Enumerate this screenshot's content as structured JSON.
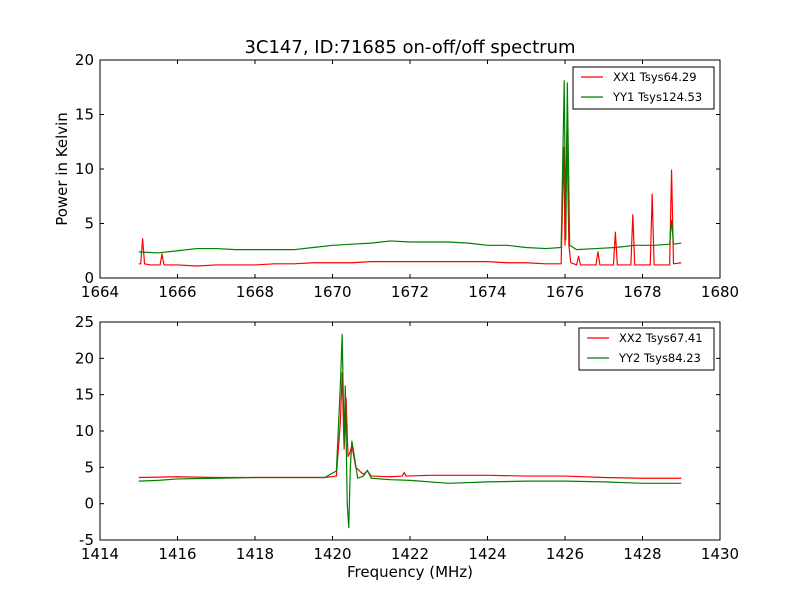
{
  "chart_data": [
    {
      "type": "line",
      "title": "3C147, ID:71685 on-off/off spectrum",
      "xlabel": "",
      "ylabel": "Power in Kelvin",
      "xlim": [
        1664,
        1680
      ],
      "ylim": [
        0,
        20
      ],
      "xticks": [
        1664,
        1666,
        1668,
        1670,
        1672,
        1674,
        1676,
        1678,
        1680
      ],
      "yticks": [
        0,
        5,
        10,
        15,
        20
      ],
      "grid": false,
      "legend": "top-right",
      "series": [
        {
          "name": "XX1 Tsys64.29",
          "color": "#ff0000",
          "points": [
            [
              1665.0,
              1.3
            ],
            [
              1665.05,
              1.3
            ],
            [
              1665.1,
              3.6
            ],
            [
              1665.15,
              1.3
            ],
            [
              1665.3,
              1.2
            ],
            [
              1665.5,
              1.2
            ],
            [
              1665.55,
              1.2
            ],
            [
              1665.6,
              2.2
            ],
            [
              1665.65,
              1.2
            ],
            [
              1666.0,
              1.2
            ],
            [
              1666.5,
              1.1
            ],
            [
              1667.0,
              1.2
            ],
            [
              1667.5,
              1.2
            ],
            [
              1668.0,
              1.2
            ],
            [
              1668.5,
              1.3
            ],
            [
              1669.0,
              1.3
            ],
            [
              1669.5,
              1.4
            ],
            [
              1670.0,
              1.4
            ],
            [
              1670.5,
              1.4
            ],
            [
              1671.0,
              1.5
            ],
            [
              1671.5,
              1.5
            ],
            [
              1672.0,
              1.5
            ],
            [
              1672.5,
              1.5
            ],
            [
              1673.0,
              1.5
            ],
            [
              1673.5,
              1.5
            ],
            [
              1674.0,
              1.5
            ],
            [
              1674.5,
              1.4
            ],
            [
              1675.0,
              1.4
            ],
            [
              1675.5,
              1.3
            ],
            [
              1675.9,
              1.3
            ],
            [
              1675.97,
              12.0
            ],
            [
              1676.0,
              3.0
            ],
            [
              1676.05,
              13.5
            ],
            [
              1676.1,
              3.0
            ],
            [
              1676.15,
              1.4
            ],
            [
              1676.3,
              1.2
            ],
            [
              1676.35,
              2.0
            ],
            [
              1676.4,
              1.2
            ],
            [
              1676.8,
              1.2
            ],
            [
              1676.85,
              2.4
            ],
            [
              1676.9,
              1.2
            ],
            [
              1677.25,
              1.2
            ],
            [
              1677.3,
              4.2
            ],
            [
              1677.35,
              1.2
            ],
            [
              1677.7,
              1.2
            ],
            [
              1677.75,
              5.8
            ],
            [
              1677.8,
              1.2
            ],
            [
              1678.2,
              1.2
            ],
            [
              1678.25,
              7.7
            ],
            [
              1678.3,
              1.2
            ],
            [
              1678.7,
              1.2
            ],
            [
              1678.75,
              9.9
            ],
            [
              1678.8,
              1.3
            ],
            [
              1679.0,
              1.4
            ]
          ]
        },
        {
          "name": "YY1 Tsys124.53",
          "color": "#008000",
          "points": [
            [
              1665.0,
              2.4
            ],
            [
              1665.5,
              2.3
            ],
            [
              1666.0,
              2.5
            ],
            [
              1666.5,
              2.7
            ],
            [
              1667.0,
              2.7
            ],
            [
              1667.5,
              2.6
            ],
            [
              1668.0,
              2.6
            ],
            [
              1668.5,
              2.6
            ],
            [
              1669.0,
              2.6
            ],
            [
              1669.5,
              2.8
            ],
            [
              1670.0,
              3.0
            ],
            [
              1670.5,
              3.1
            ],
            [
              1671.0,
              3.2
            ],
            [
              1671.5,
              3.4
            ],
            [
              1672.0,
              3.3
            ],
            [
              1672.5,
              3.3
            ],
            [
              1673.0,
              3.3
            ],
            [
              1673.5,
              3.2
            ],
            [
              1674.0,
              3.0
            ],
            [
              1674.5,
              3.0
            ],
            [
              1675.0,
              2.8
            ],
            [
              1675.5,
              2.7
            ],
            [
              1675.9,
              2.8
            ],
            [
              1675.98,
              18.1
            ],
            [
              1676.02,
              3.5
            ],
            [
              1676.06,
              17.9
            ],
            [
              1676.12,
              3.0
            ],
            [
              1676.3,
              2.6
            ],
            [
              1676.8,
              2.7
            ],
            [
              1677.3,
              2.8
            ],
            [
              1677.8,
              3.0
            ],
            [
              1678.3,
              3.0
            ],
            [
              1678.7,
              3.1
            ],
            [
              1678.75,
              5.3
            ],
            [
              1678.8,
              3.1
            ],
            [
              1679.0,
              3.2
            ]
          ]
        }
      ]
    },
    {
      "type": "line",
      "title": "",
      "xlabel": "Frequency (MHz)",
      "ylabel": "",
      "xlim": [
        1414,
        1430
      ],
      "ylim": [
        -5,
        25
      ],
      "xticks": [
        1414,
        1416,
        1418,
        1420,
        1422,
        1424,
        1426,
        1428,
        1430
      ],
      "yticks": [
        -5,
        0,
        5,
        10,
        15,
        20,
        25
      ],
      "grid": false,
      "legend": "top-right",
      "series": [
        {
          "name": "XX2 Tsys67.41",
          "color": "#ff0000",
          "points": [
            [
              1415.0,
              3.6
            ],
            [
              1416.0,
              3.7
            ],
            [
              1417.0,
              3.6
            ],
            [
              1418.0,
              3.6
            ],
            [
              1419.0,
              3.6
            ],
            [
              1419.8,
              3.6
            ],
            [
              1420.1,
              3.8
            ],
            [
              1420.2,
              11.0
            ],
            [
              1420.25,
              18.0
            ],
            [
              1420.3,
              7.5
            ],
            [
              1420.35,
              14.5
            ],
            [
              1420.4,
              6.5
            ],
            [
              1420.45,
              7.0
            ],
            [
              1420.5,
              8.0
            ],
            [
              1420.6,
              5.0
            ],
            [
              1420.8,
              4.0
            ],
            [
              1420.9,
              4.5
            ],
            [
              1421.0,
              3.8
            ],
            [
              1421.5,
              3.7
            ],
            [
              1421.8,
              3.8
            ],
            [
              1421.85,
              4.3
            ],
            [
              1421.9,
              3.8
            ],
            [
              1422.5,
              3.9
            ],
            [
              1423.0,
              3.9
            ],
            [
              1424.0,
              3.9
            ],
            [
              1425.0,
              3.8
            ],
            [
              1426.0,
              3.8
            ],
            [
              1427.0,
              3.6
            ],
            [
              1428.0,
              3.5
            ],
            [
              1429.0,
              3.5
            ]
          ]
        },
        {
          "name": "YY2 Tsys84.23",
          "color": "#008000",
          "points": [
            [
              1415.0,
              3.1
            ],
            [
              1415.5,
              3.2
            ],
            [
              1416.0,
              3.4
            ],
            [
              1417.0,
              3.5
            ],
            [
              1418.0,
              3.6
            ],
            [
              1419.0,
              3.6
            ],
            [
              1419.8,
              3.6
            ],
            [
              1420.1,
              4.5
            ],
            [
              1420.2,
              16.0
            ],
            [
              1420.25,
              23.3
            ],
            [
              1420.3,
              8.0
            ],
            [
              1420.33,
              16.2
            ],
            [
              1420.38,
              0.0
            ],
            [
              1420.42,
              -3.3
            ],
            [
              1420.46,
              5.0
            ],
            [
              1420.5,
              8.6
            ],
            [
              1420.55,
              7.0
            ],
            [
              1420.65,
              3.5
            ],
            [
              1420.8,
              3.8
            ],
            [
              1420.9,
              4.6
            ],
            [
              1421.0,
              3.5
            ],
            [
              1421.5,
              3.3
            ],
            [
              1422.0,
              3.2
            ],
            [
              1423.0,
              2.8
            ],
            [
              1424.0,
              3.0
            ],
            [
              1425.0,
              3.1
            ],
            [
              1426.0,
              3.1
            ],
            [
              1427.0,
              3.0
            ],
            [
              1428.0,
              2.8
            ],
            [
              1429.0,
              2.8
            ]
          ]
        }
      ]
    }
  ]
}
